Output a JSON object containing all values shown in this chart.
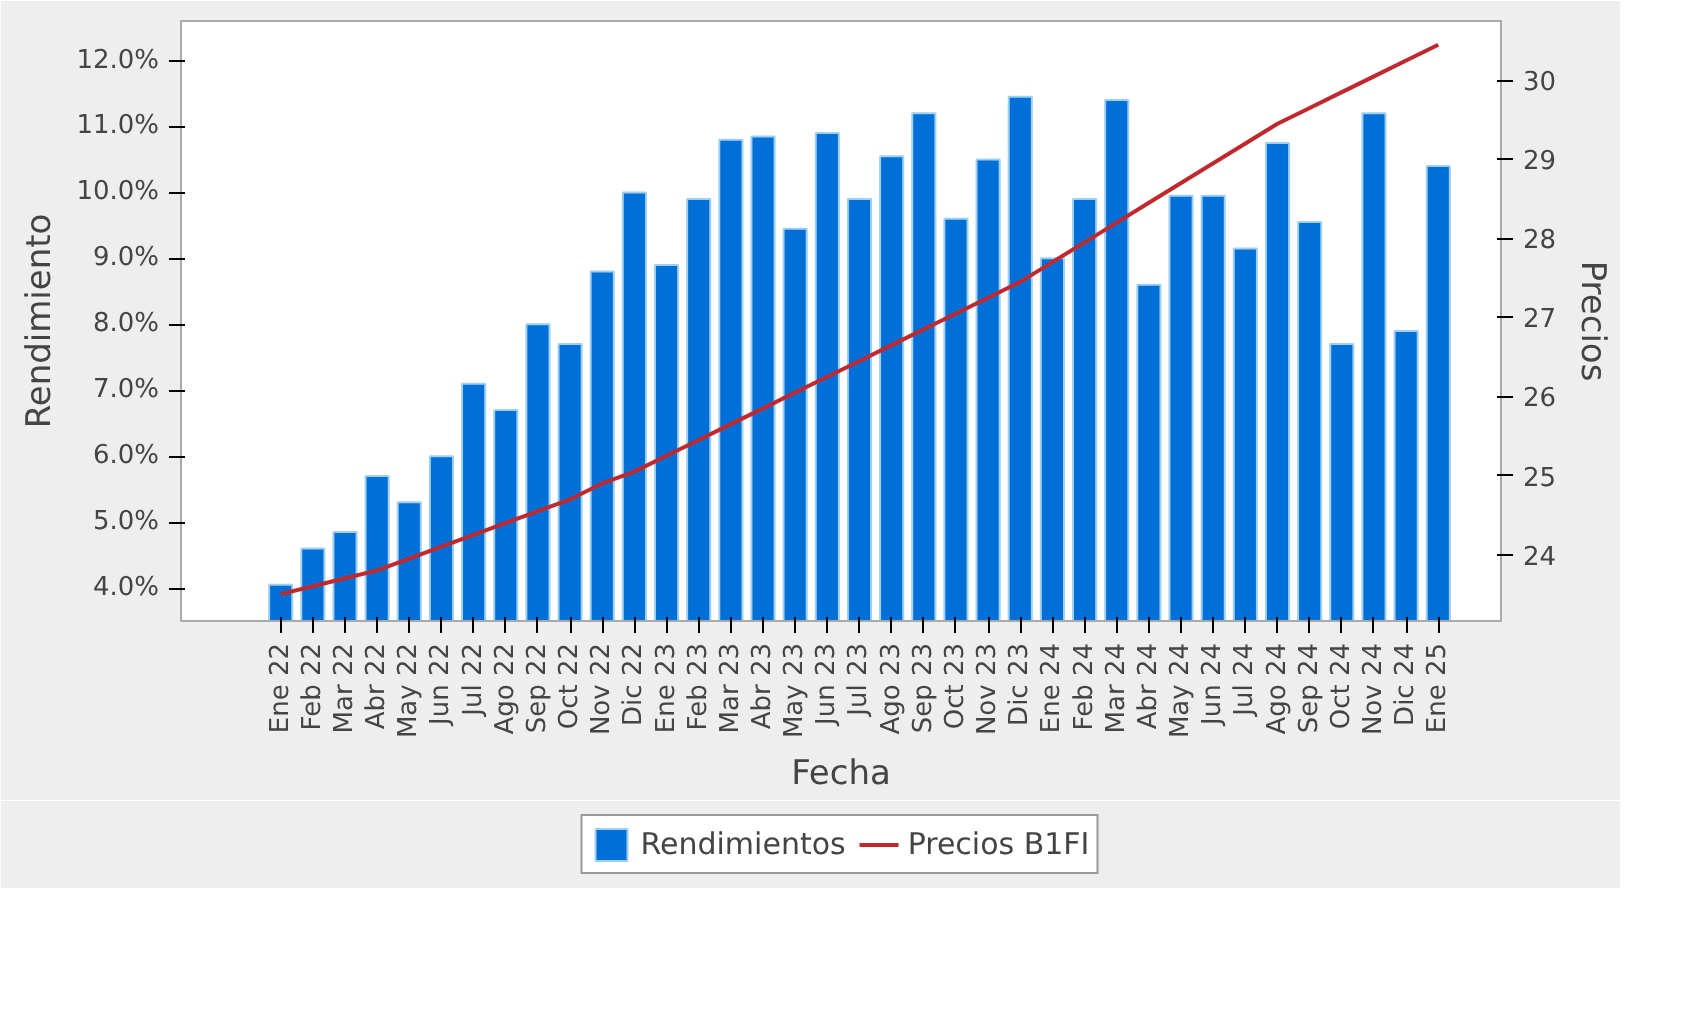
{
  "chart_data": {
    "type": "bar",
    "xlabel": "Fecha",
    "ylabel": "Rendimiento",
    "y2label": "Precios",
    "categories": [
      "Ene 22",
      "Feb 22",
      "Mar 22",
      "Abr 22",
      "May 22",
      "Jun 22",
      "Jul 22",
      "Ago 22",
      "Sep 22",
      "Oct 22",
      "Nov 22",
      "Dic 22",
      "Ene 23",
      "Feb 23",
      "Mar 23",
      "Abr 23",
      "May 23",
      "Jun 23",
      "Jul 23",
      "Ago 23",
      "Sep 23",
      "Oct 23",
      "Nov 23",
      "Dic 23",
      "Ene 24",
      "Feb 24",
      "Mar 24",
      "Abr 24",
      "May 24",
      "Jun 24",
      "Jul 24",
      "Ago 24",
      "Sep 24",
      "Oct 24",
      "Nov 24",
      "Dic 24",
      "Ene 25"
    ],
    "series": [
      {
        "name": "Rendimientos",
        "type": "bar",
        "color": "#0070d8",
        "values": [
          4.05,
          4.6,
          4.85,
          5.7,
          5.3,
          6.0,
          7.1,
          6.7,
          8.0,
          7.7,
          8.8,
          10.0,
          8.9,
          9.9,
          10.8,
          10.85,
          9.45,
          10.9,
          9.9,
          10.55,
          11.2,
          9.6,
          10.5,
          11.45,
          9.0,
          9.9,
          11.4,
          8.6,
          9.95,
          9.95,
          9.15,
          10.75,
          9.55,
          7.7,
          11.2,
          7.9,
          10.4
        ]
      },
      {
        "name": "Precios B1FI",
        "type": "line",
        "axis": "y2",
        "color": "#c0282d",
        "values": [
          23.5,
          23.6,
          23.7,
          23.8,
          23.95,
          24.1,
          24.25,
          24.4,
          24.55,
          24.7,
          24.9,
          25.05,
          25.25,
          25.45,
          25.65,
          25.85,
          26.05,
          26.25,
          26.45,
          26.65,
          26.85,
          27.05,
          27.25,
          27.45,
          27.7,
          27.95,
          28.2,
          28.45,
          28.7,
          28.95,
          29.2,
          29.45,
          29.65,
          29.85,
          30.05,
          30.25,
          30.45
        ]
      }
    ],
    "ylim": [
      3.5,
      12.6
    ],
    "yticks": [
      {
        "value": 4,
        "label": "4.0%"
      },
      {
        "value": 5,
        "label": "5.0%"
      },
      {
        "value": 6,
        "label": "6.0%"
      },
      {
        "value": 7,
        "label": "7.0%"
      },
      {
        "value": 8,
        "label": "8.0%"
      },
      {
        "value": 9,
        "label": "9.0%"
      },
      {
        "value": 10,
        "label": "10.0%"
      },
      {
        "value": 11,
        "label": "11.0%"
      },
      {
        "value": 12,
        "label": "12.0%"
      }
    ],
    "y2lim": [
      23.16,
      30.75
    ],
    "y2ticks": [
      24,
      25,
      26,
      27,
      28,
      29,
      30
    ],
    "legend": "bottom",
    "grid": false
  }
}
